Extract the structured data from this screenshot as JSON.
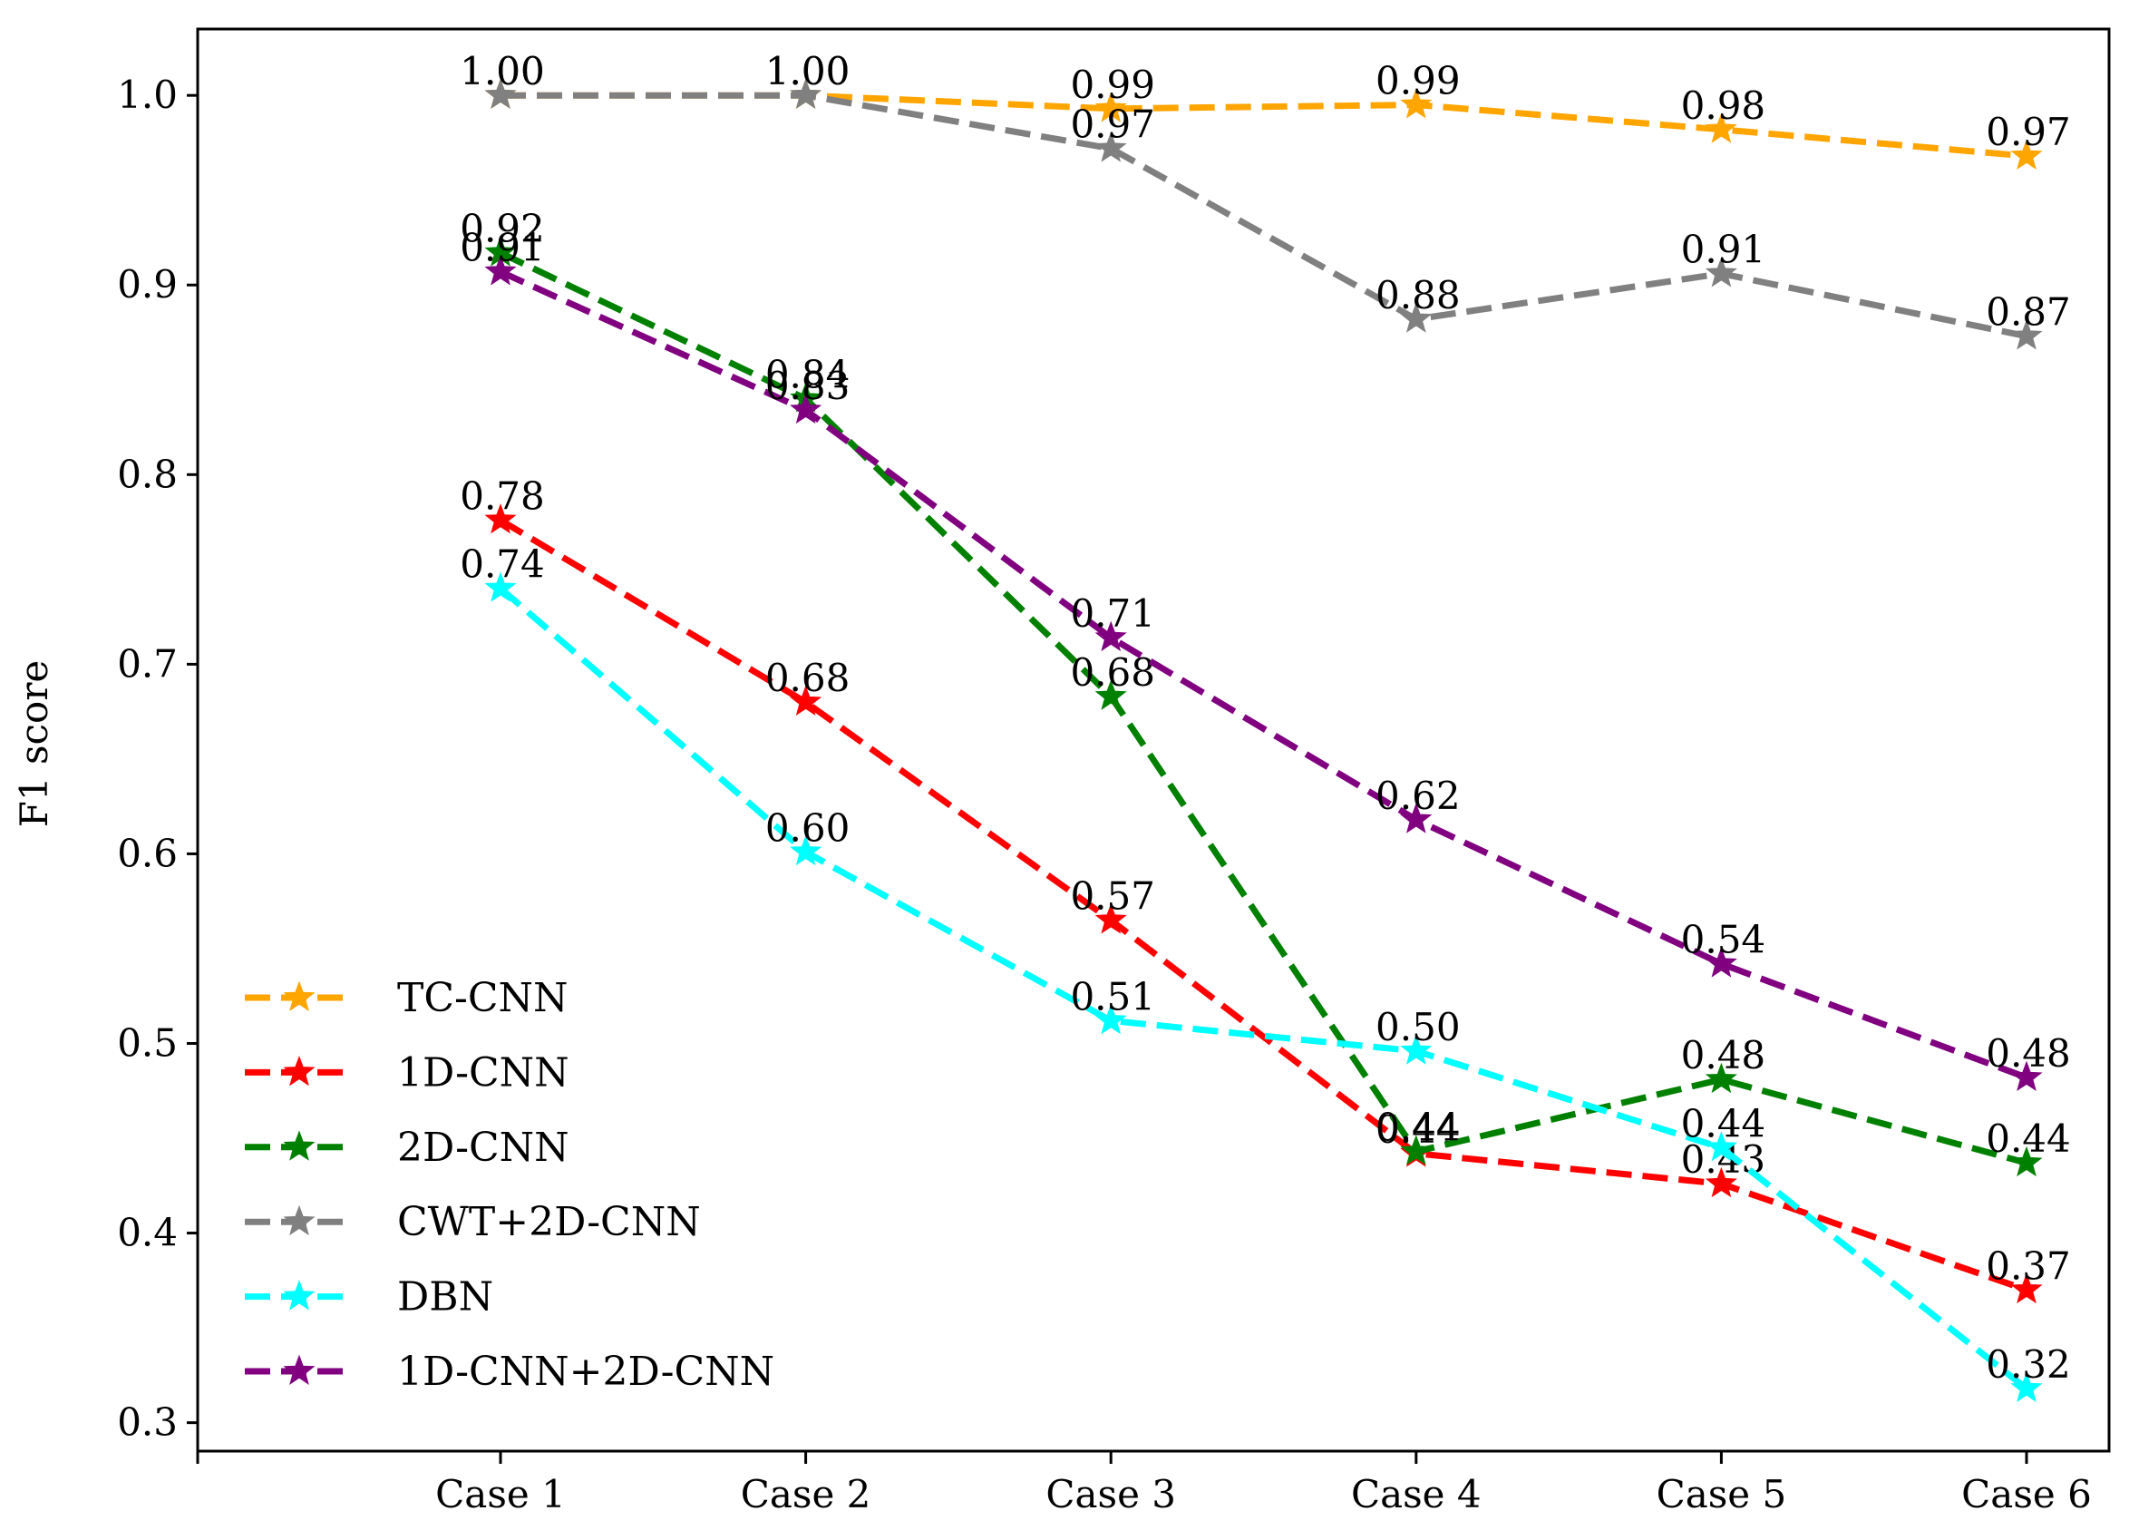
{
  "chart_data": {
    "type": "line",
    "title": "",
    "xlabel": "",
    "ylabel": "F1 score",
    "categories": [
      "Case 1",
      "Case 2",
      "Case 3",
      "Case 4",
      "Case 5",
      "Case 6"
    ],
    "ylim": [
      0.285,
      1.035
    ],
    "yticks": [
      0.3,
      0.4,
      0.5,
      0.6,
      0.7,
      0.8,
      0.9,
      1.0
    ],
    "ytick_labels": [
      "0.3",
      "0.4",
      "0.5",
      "0.6",
      "0.7",
      "0.8",
      "0.9",
      "1.0"
    ],
    "grid": false,
    "legend_position": "lower-left",
    "series": [
      {
        "name": "TC-CNN",
        "color": "#ffa500",
        "values": [
          1.0,
          1.0,
          0.993,
          0.995,
          0.982,
          0.968
        ],
        "labels": [
          "1.00",
          "1.00",
          "0.99",
          "0.99",
          "0.98",
          "0.97"
        ]
      },
      {
        "name": "1D-CNN",
        "color": "#ff0000",
        "values": [
          0.776,
          0.68,
          0.565,
          0.442,
          0.426,
          0.37
        ],
        "labels": [
          "0.78",
          "0.68",
          "0.57",
          "0.44",
          "0.43",
          "0.37"
        ]
      },
      {
        "name": "2D-CNN",
        "color": "#008000",
        "values": [
          0.917,
          0.84,
          0.683,
          0.443,
          0.481,
          0.437
        ],
        "labels": [
          "0.92",
          "0.84",
          "0.68",
          "0.44",
          "0.48",
          "0.44"
        ]
      },
      {
        "name": "CWT+2D-CNN",
        "color": "#808080",
        "values": [
          1.0,
          1.0,
          0.972,
          0.882,
          0.906,
          0.873
        ],
        "labels": [
          "1.00",
          "1.00",
          "0.97",
          "0.88",
          "0.91",
          "0.87"
        ]
      },
      {
        "name": "DBN",
        "color": "#00ffff",
        "values": [
          0.74,
          0.601,
          0.512,
          0.496,
          0.445,
          0.318
        ],
        "labels": [
          "0.74",
          "0.60",
          "0.51",
          "0.50",
          "0.44",
          "0.32"
        ]
      },
      {
        "name": "1D-CNN+2D-CNN",
        "color": "#800080",
        "values": [
          0.907,
          0.834,
          0.714,
          0.618,
          0.542,
          0.482
        ],
        "labels": [
          "0.91",
          "0.83",
          "0.71",
          "0.62",
          "0.54",
          "0.48"
        ]
      }
    ]
  }
}
